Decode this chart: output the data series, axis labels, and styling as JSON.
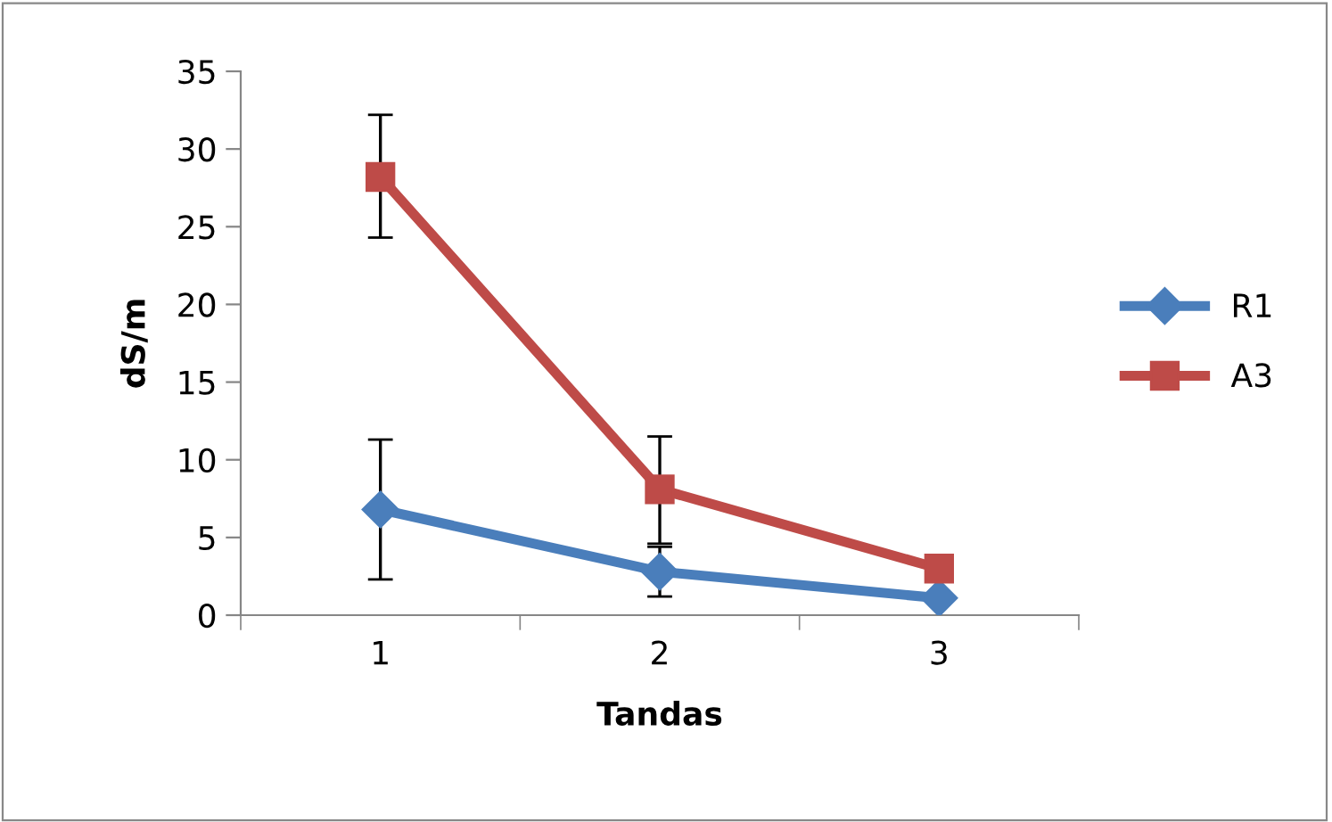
{
  "chart_data": {
    "type": "line",
    "xlabel": "Tandas",
    "ylabel": "dS/m",
    "categories": [
      "1",
      "2",
      "3"
    ],
    "series": [
      {
        "name": "R1",
        "color": "#4a7ebb",
        "marker": "diamond",
        "values": [
          6.8,
          2.8,
          1.1
        ],
        "errors": [
          [
            2.3,
            11.3
          ],
          [
            1.2,
            4.4
          ],
          null
        ]
      },
      {
        "name": "A3",
        "color": "#be4b48",
        "marker": "square",
        "values": [
          28.2,
          8.1,
          3.0
        ],
        "errors": [
          [
            24.3,
            32.2
          ],
          [
            4.6,
            11.5
          ],
          null
        ]
      }
    ],
    "ylim": [
      0,
      35
    ],
    "yticks": [
      0,
      5,
      10,
      15,
      20,
      25,
      30,
      35
    ],
    "grid": false,
    "legend": "right"
  }
}
